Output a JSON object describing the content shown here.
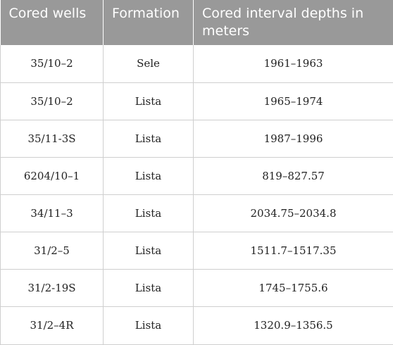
{
  "table": {
    "headers": [
      "Cored wells",
      "Formation",
      "Cored interval depths in meters"
    ],
    "rows": [
      [
        "35/10–2",
        "Sele",
        "1961–1963"
      ],
      [
        "35/10–2",
        "Lista",
        "1965–1974"
      ],
      [
        "35/11-3S",
        "Lista",
        "1987–1996"
      ],
      [
        "6204/10–1",
        "Lista",
        "819–827.57"
      ],
      [
        "34/11–3",
        "Lista",
        "2034.75–2034.8"
      ],
      [
        "31/2–5",
        "Lista",
        "1511.7–1517.35"
      ],
      [
        "31/2-19S",
        "Lista",
        "1745–1755.6"
      ],
      [
        "31/2–4R",
        "Lista",
        "1320.9–1356.5"
      ]
    ]
  },
  "colors": {
    "header_bg": "#999999",
    "header_text": "#ffffff",
    "grid": "#cfcfcf"
  }
}
